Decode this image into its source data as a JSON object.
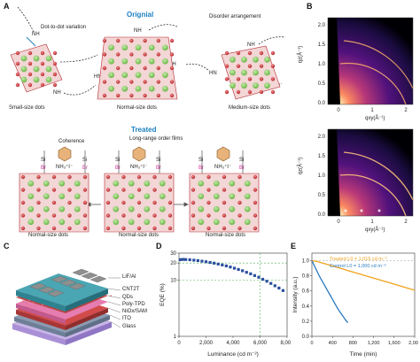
{
  "panel_labels": {
    "a": "A",
    "b": "B",
    "c": "C",
    "d": "D",
    "e": "E"
  },
  "panel_a": {
    "original_title": "Orignial",
    "treated_title": "Treated",
    "dot_variation": "Dot-to-dot variation",
    "disorder": "Disorder arrangement",
    "coherence": "Coherence",
    "long_range": "Long-range order films",
    "small_dots": "Small-size dots",
    "normal_dots": "Normal-size dots",
    "medium_dots": "Medium-size dots",
    "nh_label": "NH",
    "hn_label": "HN",
    "si": "Si",
    "br": "Br",
    "nh3i": "NH₃⁺I⁻",
    "colors": {
      "treated_blue": "#1c7fc1",
      "octa_red": "#c9343a",
      "cs_green": "#7cc55a",
      "ligand_pink": "#d0319a"
    }
  },
  "panel_b": {
    "ylabel": "qz(Å⁻¹)",
    "xlabel": "qxy(Å⁻¹)",
    "yticks": [
      "2.0",
      "1.5",
      "1.0",
      "0.5",
      "0.0"
    ],
    "xticks": [
      "0",
      "1",
      "2"
    ]
  },
  "panel_c": {
    "layers": [
      "LiF/Al",
      "CNT2T",
      "QDs",
      "Poly-TPD",
      "NiOx/SAM",
      "ITO",
      "Glass"
    ]
  },
  "chart_data": [
    {
      "type": "scatter",
      "panel": "D",
      "xlabel": "Luminance (cd m⁻²)",
      "ylabel": "EQE (%)",
      "xlim": [
        0,
        8000
      ],
      "ylim": [
        1,
        30
      ],
      "y_scale": "log",
      "xticks": [
        "0",
        "2,000",
        "4,000",
        "6,000",
        "8,000"
      ],
      "yticks": [
        "1",
        "10",
        "20",
        "30"
      ],
      "x": [
        100,
        300,
        500,
        800,
        1100,
        1400,
        1700,
        2000,
        2300,
        2600,
        2900,
        3200,
        3500,
        3800,
        4100,
        4400,
        4700,
        5000,
        5300,
        5600,
        5900,
        6200,
        6500,
        6800,
        7100,
        7400,
        7700
      ],
      "y": [
        23.0,
        23.2,
        23.1,
        22.9,
        22.5,
        22.1,
        21.6,
        21.1,
        20.5,
        19.9,
        19.2,
        18.5,
        17.8,
        17.0,
        16.2,
        15.4,
        14.6,
        13.7,
        12.9,
        12.0,
        11.2,
        10.3,
        9.5,
        8.7,
        7.9,
        7.2,
        6.5
      ],
      "reference_lines": {
        "horizontal": [
          20,
          10
        ],
        "vertical": 6000
      },
      "colors": {
        "points": "#2a4f9e",
        "reference": "#4caf50"
      }
    },
    {
      "type": "line",
      "panel": "E",
      "xlabel": "Time (min)",
      "ylabel": "Intensity (a.u.)",
      "xlim": [
        0,
        2000
      ],
      "ylim": [
        0,
        1.1
      ],
      "xticks": [
        "0",
        "400",
        "800",
        "1,200",
        "1,600",
        "2,000"
      ],
      "yticks": [
        "0.0",
        "0.2",
        "0.4",
        "0.6",
        "0.8",
        "1.0"
      ],
      "series": [
        {
          "name": "Treated L0 = 1,015 cd m⁻²",
          "color": "#f0a21b",
          "x": [
            0,
            100,
            200,
            300,
            400,
            500,
            600,
            700,
            800,
            900,
            1000,
            1100,
            1200,
            1300,
            1400,
            1500,
            1600,
            1700,
            1800,
            1900,
            2000
          ],
          "y": [
            1.0,
            0.99,
            0.97,
            0.95,
            0.93,
            0.91,
            0.89,
            0.87,
            0.85,
            0.83,
            0.81,
            0.79,
            0.77,
            0.75,
            0.73,
            0.71,
            0.69,
            0.67,
            0.65,
            0.63,
            0.61
          ]
        },
        {
          "name": "Control L0 = 1,000 cd m⁻²",
          "color": "#2a79bf",
          "x": [
            0,
            50,
            100,
            150,
            200,
            250,
            300,
            350,
            400,
            450,
            500,
            550,
            600,
            650,
            700
          ],
          "y": [
            1.0,
            0.93,
            0.86,
            0.79,
            0.73,
            0.67,
            0.61,
            0.55,
            0.49,
            0.43,
            0.37,
            0.32,
            0.27,
            0.22,
            0.18
          ]
        }
      ],
      "reference_lines": {
        "horizontal": 1.0
      }
    }
  ]
}
